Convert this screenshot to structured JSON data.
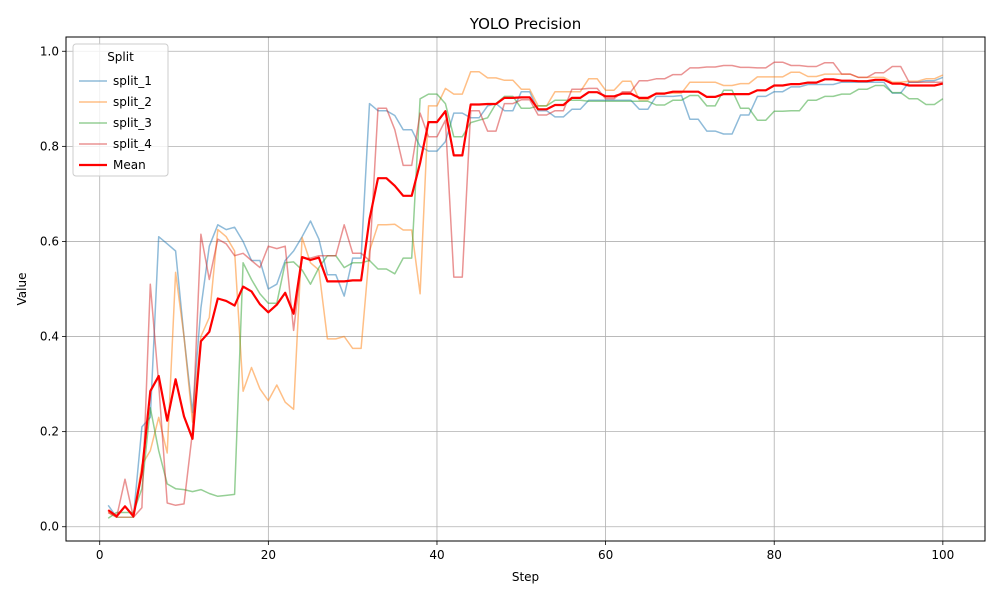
{
  "chart_data": {
    "type": "line",
    "title": "YOLO Precision",
    "xlabel": "Step",
    "ylabel": "Value",
    "xlim": [
      -4,
      105
    ],
    "ylim": [
      -0.03,
      1.03
    ],
    "xticks": [
      0,
      20,
      40,
      60,
      80,
      100
    ],
    "yticks": [
      0.0,
      0.2,
      0.4,
      0.6,
      0.8,
      1.0
    ],
    "x_tick_labels": [
      "0",
      "20",
      "40",
      "60",
      "80",
      "100"
    ],
    "y_tick_labels": [
      "0.0",
      "0.2",
      "0.4",
      "0.6",
      "0.8",
      "1.0"
    ],
    "grid": true,
    "legend": {
      "title": "Split",
      "placement": "upper-left"
    },
    "x": [
      1,
      2,
      3,
      4,
      5,
      6,
      7,
      8,
      9,
      10,
      11,
      12,
      13,
      14,
      15,
      16,
      17,
      18,
      19,
      20,
      21,
      22,
      23,
      24,
      25,
      26,
      27,
      28,
      29,
      30,
      31,
      32,
      33,
      34,
      35,
      36,
      37,
      38,
      39,
      40,
      41,
      42,
      43,
      44,
      45,
      46,
      47,
      48,
      49,
      50,
      51,
      52,
      53,
      54,
      55,
      56,
      57,
      58,
      59,
      60,
      61,
      62,
      63,
      64,
      65,
      66,
      67,
      68,
      69,
      70,
      71,
      72,
      73,
      74,
      75,
      76,
      77,
      78,
      79,
      80,
      81,
      82,
      83,
      84,
      85,
      86,
      87,
      88,
      89,
      90,
      91,
      92,
      93,
      94,
      95,
      96,
      97,
      98,
      99,
      100
    ],
    "series": [
      {
        "name": "split_1",
        "color": "#1f77b4",
        "alpha": 0.5,
        "width": 1.5,
        "values": [
          0.045,
          0.02,
          0.02,
          0.02,
          0.21,
          0.23,
          0.61,
          0.595,
          0.58,
          0.4,
          0.24,
          0.46,
          0.59,
          0.635,
          0.625,
          0.63,
          0.6,
          0.56,
          0.56,
          0.5,
          0.51,
          0.56,
          0.58,
          0.61,
          0.643,
          0.605,
          0.53,
          0.53,
          0.485,
          0.565,
          0.565,
          0.89,
          0.875,
          0.875,
          0.865,
          0.835,
          0.835,
          0.8,
          0.79,
          0.79,
          0.81,
          0.87,
          0.87,
          0.86,
          0.86,
          0.885,
          0.89,
          0.875,
          0.875,
          0.915,
          0.915,
          0.875,
          0.875,
          0.862,
          0.862,
          0.878,
          0.878,
          0.897,
          0.897,
          0.897,
          0.897,
          0.897,
          0.897,
          0.878,
          0.878,
          0.905,
          0.905,
          0.905,
          0.907,
          0.857,
          0.857,
          0.832,
          0.832,
          0.826,
          0.826,
          0.866,
          0.866,
          0.905,
          0.905,
          0.915,
          0.915,
          0.925,
          0.925,
          0.93,
          0.93,
          0.93,
          0.93,
          0.935,
          0.935,
          0.935,
          0.935,
          0.935,
          0.935,
          0.912,
          0.912,
          0.935,
          0.935,
          0.938,
          0.938,
          0.945
        ]
      },
      {
        "name": "split_2",
        "color": "#ff7f0e",
        "alpha": 0.5,
        "width": 1.5,
        "values": [
          0.03,
          0.02,
          0.02,
          0.02,
          0.13,
          0.16,
          0.23,
          0.155,
          0.535,
          0.4,
          0.22,
          0.4,
          0.44,
          0.625,
          0.61,
          0.58,
          0.285,
          0.335,
          0.29,
          0.265,
          0.298,
          0.262,
          0.247,
          0.608,
          0.555,
          0.54,
          0.395,
          0.395,
          0.4,
          0.375,
          0.375,
          0.58,
          0.635,
          0.635,
          0.636,
          0.624,
          0.624,
          0.49,
          0.885,
          0.885,
          0.922,
          0.91,
          0.91,
          0.957,
          0.957,
          0.944,
          0.944,
          0.939,
          0.939,
          0.92,
          0.92,
          0.885,
          0.885,
          0.915,
          0.915,
          0.915,
          0.915,
          0.942,
          0.942,
          0.918,
          0.918,
          0.937,
          0.937,
          0.898,
          0.898,
          0.912,
          0.912,
          0.912,
          0.912,
          0.935,
          0.935,
          0.935,
          0.935,
          0.928,
          0.928,
          0.932,
          0.932,
          0.946,
          0.946,
          0.946,
          0.946,
          0.956,
          0.956,
          0.947,
          0.947,
          0.952,
          0.952,
          0.952,
          0.952,
          0.945,
          0.945,
          0.945,
          0.945,
          0.935,
          0.935,
          0.937,
          0.937,
          0.942,
          0.942,
          0.95
        ]
      },
      {
        "name": "split_3",
        "color": "#2ca02c",
        "alpha": 0.5,
        "width": 1.5,
        "values": [
          0.018,
          0.03,
          0.03,
          0.03,
          0.08,
          0.25,
          0.16,
          0.09,
          0.08,
          0.078,
          0.074,
          0.078,
          0.07,
          0.064,
          0.066,
          0.068,
          0.555,
          0.52,
          0.49,
          0.47,
          0.47,
          0.555,
          0.557,
          0.54,
          0.51,
          0.545,
          0.57,
          0.57,
          0.545,
          0.555,
          0.555,
          0.56,
          0.542,
          0.542,
          0.532,
          0.565,
          0.565,
          0.9,
          0.91,
          0.91,
          0.89,
          0.82,
          0.82,
          0.85,
          0.855,
          0.86,
          0.89,
          0.905,
          0.905,
          0.88,
          0.88,
          0.885,
          0.885,
          0.897,
          0.897,
          0.897,
          0.897,
          0.895,
          0.895,
          0.895,
          0.895,
          0.895,
          0.895,
          0.895,
          0.895,
          0.887,
          0.887,
          0.897,
          0.897,
          0.907,
          0.907,
          0.885,
          0.885,
          0.918,
          0.918,
          0.88,
          0.88,
          0.855,
          0.855,
          0.874,
          0.874,
          0.875,
          0.875,
          0.897,
          0.897,
          0.905,
          0.905,
          0.91,
          0.91,
          0.92,
          0.92,
          0.928,
          0.928,
          0.913,
          0.913,
          0.9,
          0.9,
          0.888,
          0.888,
          0.9
        ]
      },
      {
        "name": "split_4",
        "color": "#d62728",
        "alpha": 0.5,
        "width": 1.5,
        "values": [
          0.03,
          0.02,
          0.1,
          0.02,
          0.04,
          0.51,
          0.3,
          0.05,
          0.045,
          0.048,
          0.2,
          0.615,
          0.52,
          0.605,
          0.595,
          0.57,
          0.575,
          0.56,
          0.545,
          0.59,
          0.585,
          0.59,
          0.413,
          0.565,
          0.565,
          0.57,
          0.57,
          0.57,
          0.635,
          0.575,
          0.575,
          0.56,
          0.88,
          0.88,
          0.835,
          0.76,
          0.76,
          0.87,
          0.82,
          0.82,
          0.855,
          0.525,
          0.525,
          0.875,
          0.875,
          0.832,
          0.832,
          0.89,
          0.89,
          0.898,
          0.898,
          0.866,
          0.866,
          0.875,
          0.875,
          0.92,
          0.92,
          0.922,
          0.922,
          0.9,
          0.9,
          0.915,
          0.915,
          0.938,
          0.938,
          0.942,
          0.942,
          0.951,
          0.951,
          0.965,
          0.965,
          0.967,
          0.967,
          0.97,
          0.97,
          0.966,
          0.966,
          0.965,
          0.965,
          0.977,
          0.977,
          0.97,
          0.97,
          0.968,
          0.968,
          0.976,
          0.976,
          0.952,
          0.952,
          0.945,
          0.945,
          0.955,
          0.955,
          0.968,
          0.968,
          0.935,
          0.935,
          0.935,
          0.935,
          0.935
        ]
      },
      {
        "name": "Mean",
        "color": "#ff0000",
        "alpha": 1.0,
        "width": 2.2,
        "values": [
          0.035,
          0.022,
          0.043,
          0.022,
          0.115,
          0.285,
          0.317,
          0.223,
          0.31,
          0.232,
          0.185,
          0.39,
          0.41,
          0.48,
          0.475,
          0.465,
          0.505,
          0.495,
          0.468,
          0.451,
          0.467,
          0.492,
          0.448,
          0.567,
          0.561,
          0.566,
          0.516,
          0.516,
          0.516,
          0.518,
          0.518,
          0.647,
          0.733,
          0.733,
          0.717,
          0.696,
          0.696,
          0.765,
          0.851,
          0.851,
          0.874,
          0.781,
          0.781,
          0.888,
          0.888,
          0.889,
          0.889,
          0.902,
          0.902,
          0.903,
          0.903,
          0.878,
          0.878,
          0.887,
          0.887,
          0.902,
          0.902,
          0.914,
          0.914,
          0.905,
          0.905,
          0.911,
          0.911,
          0.902,
          0.902,
          0.911,
          0.911,
          0.915,
          0.915,
          0.915,
          0.915,
          0.904,
          0.904,
          0.91,
          0.91,
          0.91,
          0.91,
          0.918,
          0.918,
          0.928,
          0.928,
          0.931,
          0.931,
          0.934,
          0.934,
          0.941,
          0.941,
          0.938,
          0.938,
          0.937,
          0.937,
          0.94,
          0.94,
          0.932,
          0.932,
          0.928,
          0.928,
          0.928,
          0.928,
          0.932
        ]
      }
    ]
  }
}
